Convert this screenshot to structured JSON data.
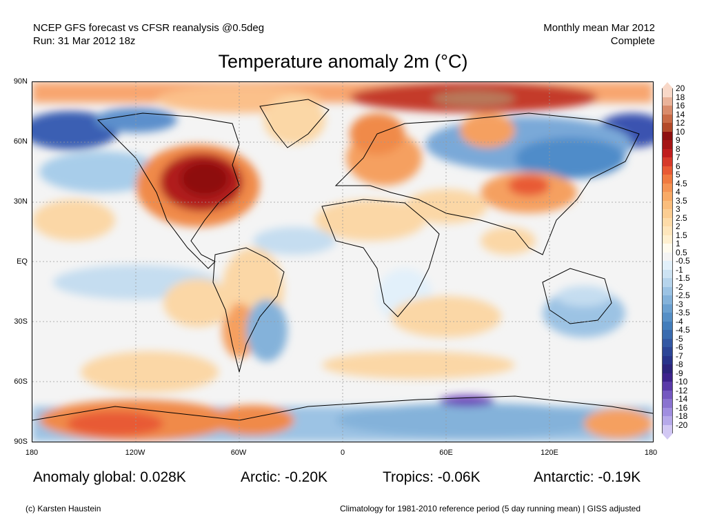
{
  "header": {
    "line1_left": "NCEP GFS forecast vs CFSR reanalysis @0.5deg",
    "line2_left": "Run: 31 Mar 2012 18z",
    "line1_right": "Monthly mean Mar 2012",
    "line2_right": "Complete"
  },
  "title": "Temperature anomaly 2m (°C)",
  "map": {
    "lat_labels": [
      "90N",
      "60N",
      "30N",
      "EQ",
      "30S",
      "60S",
      "90S"
    ],
    "lon_labels": [
      "180",
      "120W",
      "60W",
      "0",
      "60E",
      "120E",
      "180"
    ],
    "colors": {
      "ocean_neutral": "#f4f4f4",
      "strong_warm": "#b01e1e",
      "warm": "#f08a4a",
      "mild_warm": "#fbd7a6",
      "cold": "#4f8cc9",
      "mild_cold": "#c5ddf0",
      "strong_cold": "#3a52b0",
      "very_cold": "#6a3cb8"
    }
  },
  "colorbar": {
    "labels": [
      "20",
      "18",
      "16",
      "14",
      "12",
      "10",
      "9",
      "8",
      "7",
      "6",
      "5",
      "4.5",
      "4",
      "3.5",
      "3",
      "2.5",
      "2",
      "1.5",
      "1",
      "0.5",
      "-0.5",
      "-1",
      "-1.5",
      "-2",
      "-2.5",
      "-3",
      "-3.5",
      "-4",
      "-4.5",
      "-5",
      "-6",
      "-7",
      "-8",
      "-9",
      "-10",
      "-12",
      "-14",
      "-16",
      "-18",
      "-20"
    ],
    "colors": [
      "#f8d8c8",
      "#eab39a",
      "#d98c6c",
      "#c96b47",
      "#b34a2a",
      "#8e1010",
      "#a51515",
      "#c01e1e",
      "#d63a2a",
      "#e85a34",
      "#f07a40",
      "#f59454",
      "#f8aa66",
      "#fabd7c",
      "#fbcd92",
      "#fddba8",
      "#fee6bc",
      "#fff0d0",
      "#fffbee",
      "#f4f4f4",
      "#e2f0fa",
      "#cde3f3",
      "#b6d4ec",
      "#9cc3e4",
      "#84b2da",
      "#6ba0d0",
      "#568fc6",
      "#437dbb",
      "#3a6baf",
      "#3358a3",
      "#2c4596",
      "#28338a",
      "#2c247c",
      "#3e238c",
      "#5a3aa8",
      "#7458c0",
      "#8a73d0",
      "#a08ee0",
      "#b6a9ea",
      "#d2c8f4"
    ]
  },
  "stats": {
    "global": "Anomaly global: 0.028K",
    "arctic": "Arctic: -0.20K",
    "tropics": "Tropics: -0.06K",
    "antarctic": "Antarctic: -0.19K"
  },
  "footer": {
    "left": "(c) Karsten Haustein",
    "right": "Climatology for 1981-2010 reference period (5 day running mean) | GISS adjusted"
  }
}
